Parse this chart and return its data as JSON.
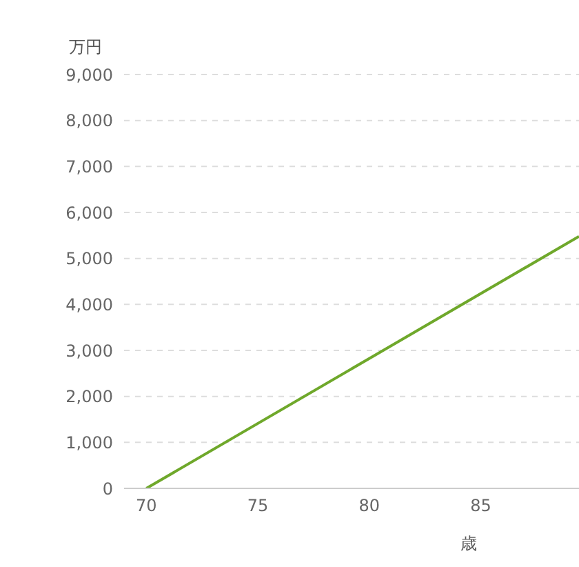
{
  "chart_data": {
    "type": "line",
    "xlabel": "歳",
    "ylabel": "万円",
    "x": [
      70,
      89.4
    ],
    "series": [
      {
        "color": "#6fa82b",
        "values": [
          0,
          5480
        ]
      }
    ],
    "xlim": [
      69,
      89.4
    ],
    "xticks": [
      70,
      75,
      80,
      85
    ],
    "ylim": [
      0,
      9000
    ],
    "yticks": [
      {
        "value": 0,
        "label": "0"
      },
      {
        "value": 1000,
        "label": "1,000"
      },
      {
        "value": 2000,
        "label": "2,000"
      },
      {
        "value": 3000,
        "label": "3,000"
      },
      {
        "value": 4000,
        "label": "4,000"
      },
      {
        "value": 5000,
        "label": "5,000"
      },
      {
        "value": 6000,
        "label": "6,000"
      },
      {
        "value": 7000,
        "label": "7,000"
      },
      {
        "value": 8000,
        "label": "8,000"
      },
      {
        "value": 9000,
        "label": "9,000"
      }
    ],
    "grid": "y",
    "marker": "none",
    "line_style": "solid"
  }
}
